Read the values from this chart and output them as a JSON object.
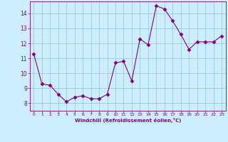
{
  "x": [
    0,
    1,
    2,
    3,
    4,
    5,
    6,
    7,
    8,
    9,
    10,
    11,
    12,
    13,
    14,
    15,
    16,
    17,
    18,
    19,
    20,
    21,
    22,
    23
  ],
  "y": [
    11.3,
    9.3,
    9.2,
    8.6,
    8.1,
    8.4,
    8.5,
    8.3,
    8.3,
    8.6,
    10.7,
    10.8,
    9.5,
    12.3,
    11.9,
    14.5,
    14.3,
    13.5,
    12.6,
    11.6,
    12.1,
    12.1,
    12.1,
    12.5
  ],
  "line_color": "#800080",
  "marker": "D",
  "marker_size": 2.5,
  "background_color": "#cceeff",
  "grid_color": "#99ccdd",
  "xlabel": "Windchill (Refroidissement éolien,°C)",
  "xlabel_color": "#800080",
  "tick_color": "#800080",
  "ylim": [
    7.5,
    14.8
  ],
  "yticks": [
    8,
    9,
    10,
    11,
    12,
    13,
    14
  ],
  "xtick_labels": [
    "0",
    "1",
    "2",
    "3",
    "4",
    "5",
    "6",
    "7",
    "8",
    "9",
    "10",
    "11",
    "12",
    "13",
    "14",
    "15",
    "16",
    "17",
    "18",
    "19",
    "20",
    "21",
    "22",
    "23"
  ]
}
